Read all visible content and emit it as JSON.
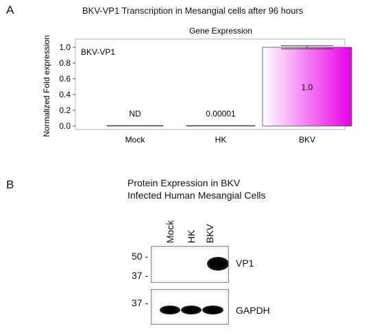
{
  "panel_a": {
    "letter": "A",
    "title": "BKV-VP1 Transcription in Mesangial cells  after 96 hours"
  },
  "panel_b": {
    "letter": "B",
    "title_line1": "Protein Expression in BKV",
    "title_line2": "Infected Human Mesangial Cells",
    "lanes": [
      "Mock",
      "HK",
      "BKV"
    ],
    "vp1_blot": {
      "label": "VP1",
      "markers": [
        "50 -",
        "37 -"
      ],
      "bands": [
        0,
        0,
        1
      ]
    },
    "gapdh_blot": {
      "label": "GAPDH",
      "markers": [
        "37 -"
      ],
      "bands": [
        1,
        1,
        1
      ]
    }
  },
  "chart_data": {
    "type": "bar",
    "title": "Gene Expression",
    "ylabel": "Normalized Fold expression",
    "xlabel": "",
    "ylim": [
      0,
      1.0
    ],
    "yticks": [
      "0.0",
      "0.2",
      "0.4",
      "0.6",
      "0.8",
      "1.0"
    ],
    "series_label": "BKV-VP1",
    "categories": [
      "Mock",
      "HK",
      "BKV"
    ],
    "values": [
      0,
      1e-05,
      1.0
    ],
    "value_labels": [
      "ND",
      "0.00001",
      "1.0"
    ],
    "error_bars": [
      null,
      null,
      0.04
    ],
    "bar_colors": [
      "#ffffff",
      "#e600e6"
    ]
  }
}
